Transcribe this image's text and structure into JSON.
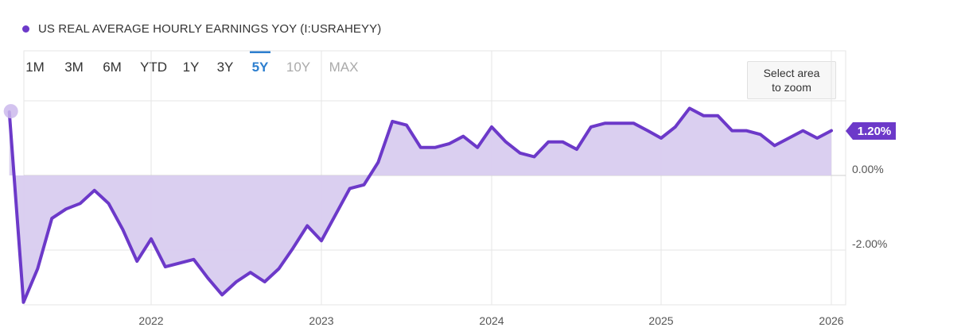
{
  "legend": {
    "label": "US REAL AVERAGE HOURLY EARNINGS YOY (I:USRAHEYY)"
  },
  "ranges": [
    {
      "label": "1M",
      "state": "normal"
    },
    {
      "label": "3M",
      "state": "normal"
    },
    {
      "label": "6M",
      "state": "normal"
    },
    {
      "label": "YTD",
      "state": "normal"
    },
    {
      "label": "1Y",
      "state": "normal"
    },
    {
      "label": "3Y",
      "state": "normal"
    },
    {
      "label": "5Y",
      "state": "active"
    },
    {
      "label": "10Y",
      "state": "disabled"
    },
    {
      "label": "MAX",
      "state": "disabled"
    }
  ],
  "zoom_hint": "Select area\nto zoom",
  "colors": {
    "series": "#6c39c9",
    "fill": "#d8ccef",
    "active_range": "#2d7fcf"
  },
  "chart_data": {
    "type": "area",
    "x_ticks": [
      "2022",
      "2023",
      "2024",
      "2025",
      "2026"
    ],
    "y_ticks": [
      {
        "value": 0,
        "label": "0.00%"
      },
      {
        "value": -2,
        "label": "-2.00%"
      }
    ],
    "ylim": [
      -3.5,
      3.0
    ],
    "grid": true,
    "last_value_label": "1.20%",
    "series": [
      {
        "values": [
          {
            "x": "2021-03",
            "y": 1.7
          },
          {
            "x": "2021-04",
            "y": -3.4
          },
          {
            "x": "2021-05",
            "y": -2.5
          },
          {
            "x": "2021-06",
            "y": -1.15
          },
          {
            "x": "2021-07",
            "y": -0.9
          },
          {
            "x": "2021-08",
            "y": -0.75
          },
          {
            "x": "2021-09",
            "y": -0.4
          },
          {
            "x": "2021-10",
            "y": -0.75
          },
          {
            "x": "2021-11",
            "y": -1.45
          },
          {
            "x": "2021-12",
            "y": -2.3
          },
          {
            "x": "2022-01",
            "y": -1.7
          },
          {
            "x": "2022-02",
            "y": -2.45
          },
          {
            "x": "2022-03",
            "y": -2.35
          },
          {
            "x": "2022-04",
            "y": -2.25
          },
          {
            "x": "2022-05",
            "y": -2.75
          },
          {
            "x": "2022-06",
            "y": -3.2
          },
          {
            "x": "2022-07",
            "y": -2.85
          },
          {
            "x": "2022-08",
            "y": -2.6
          },
          {
            "x": "2022-09",
            "y": -2.85
          },
          {
            "x": "2022-10",
            "y": -2.5
          },
          {
            "x": "2022-11",
            "y": -1.95
          },
          {
            "x": "2022-12",
            "y": -1.35
          },
          {
            "x": "2023-01",
            "y": -1.75
          },
          {
            "x": "2023-02",
            "y": -1.05
          },
          {
            "x": "2023-03",
            "y": -0.35
          },
          {
            "x": "2023-04",
            "y": -0.25
          },
          {
            "x": "2023-05",
            "y": 0.35
          },
          {
            "x": "2023-06",
            "y": 1.45
          },
          {
            "x": "2023-07",
            "y": 1.35
          },
          {
            "x": "2023-08",
            "y": 0.75
          },
          {
            "x": "2023-09",
            "y": 0.75
          },
          {
            "x": "2023-10",
            "y": 0.85
          },
          {
            "x": "2023-11",
            "y": 1.05
          },
          {
            "x": "2023-12",
            "y": 0.75
          },
          {
            "x": "2024-01",
            "y": 1.3
          },
          {
            "x": "2024-02",
            "y": 0.9
          },
          {
            "x": "2024-03",
            "y": 0.6
          },
          {
            "x": "2024-04",
            "y": 0.5
          },
          {
            "x": "2024-05",
            "y": 0.9
          },
          {
            "x": "2024-06",
            "y": 0.9
          },
          {
            "x": "2024-07",
            "y": 0.7
          },
          {
            "x": "2024-08",
            "y": 1.3
          },
          {
            "x": "2024-09",
            "y": 1.4
          },
          {
            "x": "2024-10",
            "y": 1.4
          },
          {
            "x": "2024-11",
            "y": 1.4
          },
          {
            "x": "2024-12",
            "y": 1.2
          },
          {
            "x": "2025-01",
            "y": 1.0
          },
          {
            "x": "2025-02",
            "y": 1.3
          },
          {
            "x": "2025-03",
            "y": 1.8
          },
          {
            "x": "2025-04",
            "y": 1.6
          },
          {
            "x": "2025-05",
            "y": 1.6
          },
          {
            "x": "2025-06",
            "y": 1.2
          },
          {
            "x": "2025-07",
            "y": 1.2
          },
          {
            "x": "2025-08",
            "y": 1.1
          },
          {
            "x": "2025-09",
            "y": 0.8
          },
          {
            "x": "2025-10",
            "y": 1.0
          },
          {
            "x": "2025-11",
            "y": 1.2
          },
          {
            "x": "2025-12",
            "y": 1.0
          },
          {
            "x": "2026-01",
            "y": 1.2
          }
        ]
      }
    ]
  }
}
